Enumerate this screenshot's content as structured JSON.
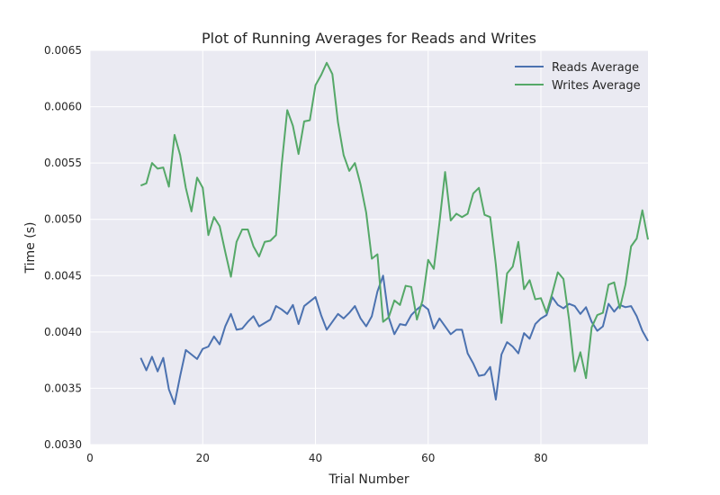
{
  "chart_data": {
    "type": "line",
    "title": "Plot of Running Averages for Reads and Writes",
    "xlabel": "Trial Number",
    "ylabel": "Time (s)",
    "xlim": [
      0,
      99
    ],
    "ylim": [
      0.003,
      0.0065
    ],
    "x_ticks": [
      0,
      20,
      40,
      60,
      80
    ],
    "x_tick_labels": [
      "0",
      "20",
      "40",
      "60",
      "80"
    ],
    "y_ticks": [
      0.003,
      0.0035,
      0.004,
      0.0045,
      0.005,
      0.0055,
      0.006,
      0.0065
    ],
    "y_tick_labels": [
      "0.0030",
      "0.0035",
      "0.0040",
      "0.0045",
      "0.0050",
      "0.0055",
      "0.0060",
      "0.0065"
    ],
    "grid": true,
    "legend_position": "top-right",
    "x": [
      9,
      10,
      11,
      12,
      13,
      14,
      15,
      16,
      17,
      18,
      19,
      20,
      21,
      22,
      23,
      24,
      25,
      26,
      27,
      28,
      29,
      30,
      31,
      32,
      33,
      34,
      35,
      36,
      37,
      38,
      39,
      40,
      41,
      42,
      43,
      44,
      45,
      46,
      47,
      48,
      49,
      50,
      51,
      52,
      53,
      54,
      55,
      56,
      57,
      58,
      59,
      60,
      61,
      62,
      63,
      64,
      65,
      66,
      67,
      68,
      69,
      70,
      71,
      72,
      73,
      74,
      75,
      76,
      77,
      78,
      79,
      80,
      81,
      82,
      83,
      84,
      85,
      86,
      87,
      88,
      89,
      90,
      91,
      92,
      93,
      94,
      95,
      96,
      97,
      98,
      99
    ],
    "series": [
      {
        "name": "Reads Average",
        "color": "#4c72b0",
        "values": [
          0.00377,
          0.00366,
          0.00378,
          0.00365,
          0.00377,
          0.00349,
          0.00336,
          0.00361,
          0.00384,
          0.0038,
          0.00376,
          0.00385,
          0.00387,
          0.00396,
          0.00389,
          0.00405,
          0.00416,
          0.00402,
          0.00403,
          0.00409,
          0.00414,
          0.00405,
          0.00408,
          0.00411,
          0.00423,
          0.0042,
          0.00416,
          0.00424,
          0.00407,
          0.00423,
          0.00427,
          0.00431,
          0.00415,
          0.00402,
          0.00409,
          0.00416,
          0.00412,
          0.00417,
          0.00423,
          0.00412,
          0.00405,
          0.00414,
          0.00436,
          0.0045,
          0.00413,
          0.00398,
          0.00407,
          0.00406,
          0.00415,
          0.0042,
          0.00424,
          0.0042,
          0.00403,
          0.00412,
          0.00405,
          0.00398,
          0.00402,
          0.00402,
          0.00381,
          0.00372,
          0.00361,
          0.00362,
          0.00369,
          0.0034,
          0.0038,
          0.00391,
          0.00387,
          0.00381,
          0.00399,
          0.00394,
          0.00407,
          0.00412,
          0.00415,
          0.00431,
          0.00424,
          0.00421,
          0.00425,
          0.00423,
          0.00416,
          0.00422,
          0.00409,
          0.00401,
          0.00405,
          0.00425,
          0.00418,
          0.00424,
          0.00422,
          0.00423,
          0.00414,
          0.00401,
          0.00392
        ]
      },
      {
        "name": "Writes Average",
        "color": "#55a868",
        "values": [
          0.0053,
          0.00532,
          0.0055,
          0.00545,
          0.00546,
          0.00529,
          0.00575,
          0.00557,
          0.00528,
          0.00507,
          0.00537,
          0.00528,
          0.00486,
          0.00502,
          0.00494,
          0.00471,
          0.00449,
          0.0048,
          0.00491,
          0.00491,
          0.00476,
          0.00467,
          0.0048,
          0.00481,
          0.00486,
          0.00548,
          0.00597,
          0.00583,
          0.00558,
          0.00587,
          0.00588,
          0.00619,
          0.00628,
          0.00639,
          0.00629,
          0.00586,
          0.00557,
          0.00543,
          0.0055,
          0.00531,
          0.00506,
          0.00465,
          0.00469,
          0.00409,
          0.00413,
          0.00428,
          0.00424,
          0.00441,
          0.0044,
          0.00411,
          0.00428,
          0.00464,
          0.00456,
          0.00497,
          0.00542,
          0.00499,
          0.00505,
          0.00502,
          0.00505,
          0.00523,
          0.00528,
          0.00504,
          0.00502,
          0.0046,
          0.00408,
          0.00452,
          0.00458,
          0.0048,
          0.00438,
          0.00446,
          0.00429,
          0.0043,
          0.00417,
          0.00434,
          0.00453,
          0.00447,
          0.00411,
          0.00365,
          0.00382,
          0.00359,
          0.00404,
          0.00415,
          0.00417,
          0.00442,
          0.00444,
          0.00421,
          0.00442,
          0.00476,
          0.00483,
          0.00508,
          0.00482
        ]
      }
    ]
  }
}
